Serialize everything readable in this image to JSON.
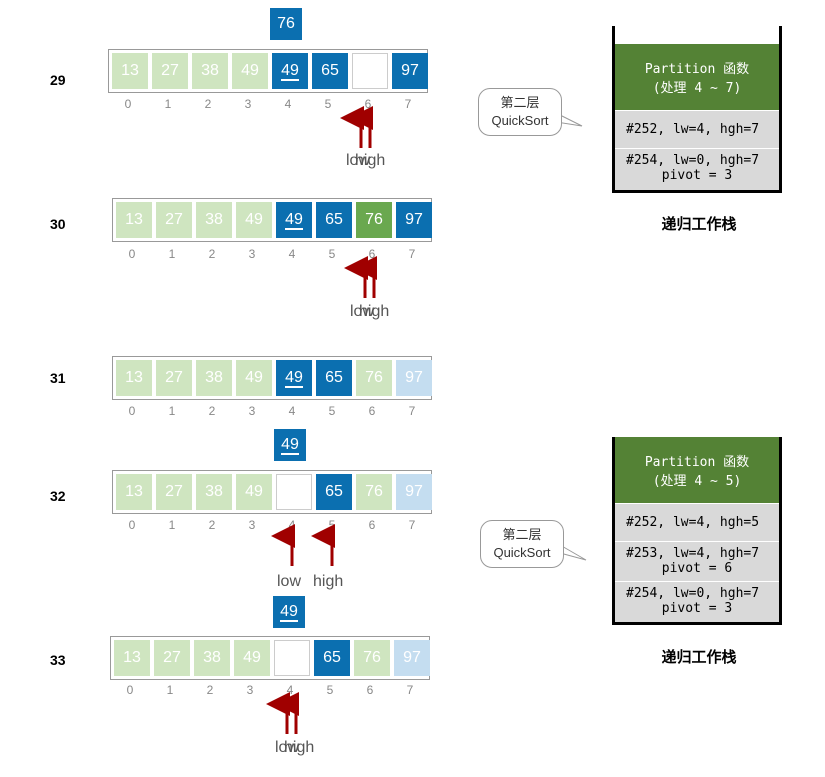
{
  "rows": [
    {
      "step": "29",
      "cells": [
        {
          "v": "13",
          "s": "light"
        },
        {
          "v": "27",
          "s": "light"
        },
        {
          "v": "38",
          "s": "light"
        },
        {
          "v": "49",
          "s": "light"
        },
        {
          "v": "49",
          "s": "blue",
          "u": true
        },
        {
          "v": "65",
          "s": "blue"
        },
        {
          "v": "",
          "s": "empty"
        },
        {
          "v": "97",
          "s": "blue"
        }
      ],
      "indices": [
        "0",
        "1",
        "2",
        "3",
        "4",
        "5",
        "6",
        "7"
      ],
      "pivot": {
        "value": "76",
        "underline": false
      },
      "pointers": {
        "low": "low",
        "high": "high"
      }
    },
    {
      "step": "30",
      "cells": [
        {
          "v": "13",
          "s": "light"
        },
        {
          "v": "27",
          "s": "light"
        },
        {
          "v": "38",
          "s": "light"
        },
        {
          "v": "49",
          "s": "light"
        },
        {
          "v": "49",
          "s": "blue",
          "u": true
        },
        {
          "v": "65",
          "s": "blue"
        },
        {
          "v": "76",
          "s": "green"
        },
        {
          "v": "97",
          "s": "blue"
        }
      ],
      "indices": [
        "0",
        "1",
        "2",
        "3",
        "4",
        "5",
        "6",
        "7"
      ],
      "pointers": {
        "low": "low",
        "high": "high"
      }
    },
    {
      "step": "31",
      "cells": [
        {
          "v": "13",
          "s": "light"
        },
        {
          "v": "27",
          "s": "light"
        },
        {
          "v": "38",
          "s": "light"
        },
        {
          "v": "49",
          "s": "light"
        },
        {
          "v": "49",
          "s": "blue",
          "u": true
        },
        {
          "v": "65",
          "s": "blue"
        },
        {
          "v": "76",
          "s": "light"
        },
        {
          "v": "97",
          "s": "lightblue"
        }
      ],
      "indices": [
        "0",
        "1",
        "2",
        "3",
        "4",
        "5",
        "6",
        "7"
      ]
    },
    {
      "step": "32",
      "cells": [
        {
          "v": "13",
          "s": "light"
        },
        {
          "v": "27",
          "s": "light"
        },
        {
          "v": "38",
          "s": "light"
        },
        {
          "v": "49",
          "s": "light"
        },
        {
          "v": "",
          "s": "empty"
        },
        {
          "v": "65",
          "s": "blue"
        },
        {
          "v": "76",
          "s": "light"
        },
        {
          "v": "97",
          "s": "lightblue"
        }
      ],
      "indices": [
        "0",
        "1",
        "2",
        "3",
        "4",
        "5",
        "6",
        "7"
      ],
      "pivot": {
        "value": "49",
        "underline": true
      },
      "pointers": {
        "low": "low",
        "high": "high"
      }
    },
    {
      "step": "33",
      "cells": [
        {
          "v": "13",
          "s": "light"
        },
        {
          "v": "27",
          "s": "light"
        },
        {
          "v": "38",
          "s": "light"
        },
        {
          "v": "49",
          "s": "light"
        },
        {
          "v": "",
          "s": "empty"
        },
        {
          "v": "65",
          "s": "blue"
        },
        {
          "v": "76",
          "s": "light"
        },
        {
          "v": "97",
          "s": "lightblue"
        }
      ],
      "indices": [
        "0",
        "1",
        "2",
        "3",
        "4",
        "5",
        "6",
        "7"
      ],
      "pivot": {
        "value": "49",
        "underline": true
      },
      "pointers": {
        "low": "low",
        "high": "high"
      }
    }
  ],
  "stacks": [
    {
      "header": [
        "Partition 函数",
        "(处理 4 ~ 7)"
      ],
      "frames": [
        [
          "#252, lw=4, hgh=7"
        ],
        [
          "#254, lw=0, hgh=7",
          "pivot = 3"
        ]
      ],
      "title": "递归工作栈"
    },
    {
      "header": [
        "Partition 函数",
        "(处理 4 ~ 5)"
      ],
      "frames": [
        [
          "#252, lw=4, hgh=5"
        ],
        [
          "#253, lw=4, hgh=7",
          "pivot = 6"
        ],
        [
          "#254, lw=0, hgh=7",
          "pivot = 3"
        ]
      ],
      "title": "递归工作栈"
    }
  ],
  "bubbles": [
    {
      "line1": "第二层",
      "line2": "QuickSort"
    },
    {
      "line1": "第二层",
      "line2": "QuickSort"
    }
  ],
  "colors": {
    "accent_blue": "#0b6fb0",
    "done_green": "#cfe5c0",
    "arrow_red": "#a00000",
    "stack_header": "#548235"
  }
}
